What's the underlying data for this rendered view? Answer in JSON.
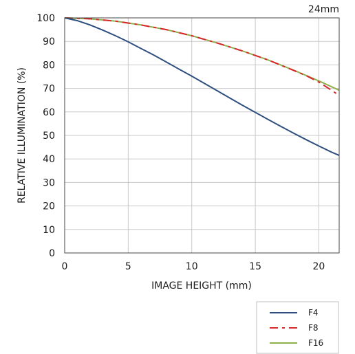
{
  "chart_data": {
    "type": "line",
    "corner_label": "24mm",
    "xlabel": "IMAGE HEIGHT (mm)",
    "ylabel": "RELATIVE ILLUMINATION (%)",
    "xlim": [
      0,
      21.6
    ],
    "ylim": [
      0,
      100
    ],
    "xticks": [
      0,
      5,
      10,
      15,
      20
    ],
    "yticks": [
      0,
      10,
      20,
      30,
      40,
      50,
      60,
      70,
      80,
      90,
      100
    ],
    "grid": true,
    "legend_position": "bottom-right",
    "series": [
      {
        "name": "F4",
        "color": "#2d4e7e",
        "dash": "solid",
        "x": [
          0,
          1,
          2,
          3,
          4,
          5,
          6,
          7,
          8,
          9,
          10,
          11,
          12,
          13,
          14,
          15,
          16,
          17,
          18,
          19,
          20,
          21,
          21.6
        ],
        "y": [
          100,
          98.8,
          97.0,
          94.8,
          92.4,
          89.8,
          87.0,
          84.2,
          81.2,
          78.2,
          75.2,
          72.1,
          69.0,
          65.9,
          62.8,
          59.8,
          56.8,
          53.9,
          51.0,
          48.2,
          45.5,
          42.9,
          41.5
        ]
      },
      {
        "name": "F8",
        "color": "#d9262b",
        "dash": "dash-dot",
        "x": [
          0,
          2,
          4,
          6,
          8,
          10,
          12,
          14,
          16,
          18,
          19,
          20,
          21,
          21.6
        ],
        "y": [
          100,
          99.6,
          98.6,
          97.0,
          95.0,
          92.4,
          89.3,
          85.9,
          82.1,
          77.7,
          75.4,
          72.7,
          69.2,
          67.0
        ]
      },
      {
        "name": "F16",
        "color": "#8db04c",
        "dash": "solid",
        "x": [
          0,
          2,
          4,
          6,
          8,
          10,
          12,
          14,
          16,
          18,
          20,
          21,
          21.6
        ],
        "y": [
          100,
          99.6,
          98.6,
          97.0,
          95.0,
          92.4,
          89.3,
          85.9,
          82.1,
          77.8,
          73.2,
          70.7,
          69.2
        ]
      }
    ]
  }
}
